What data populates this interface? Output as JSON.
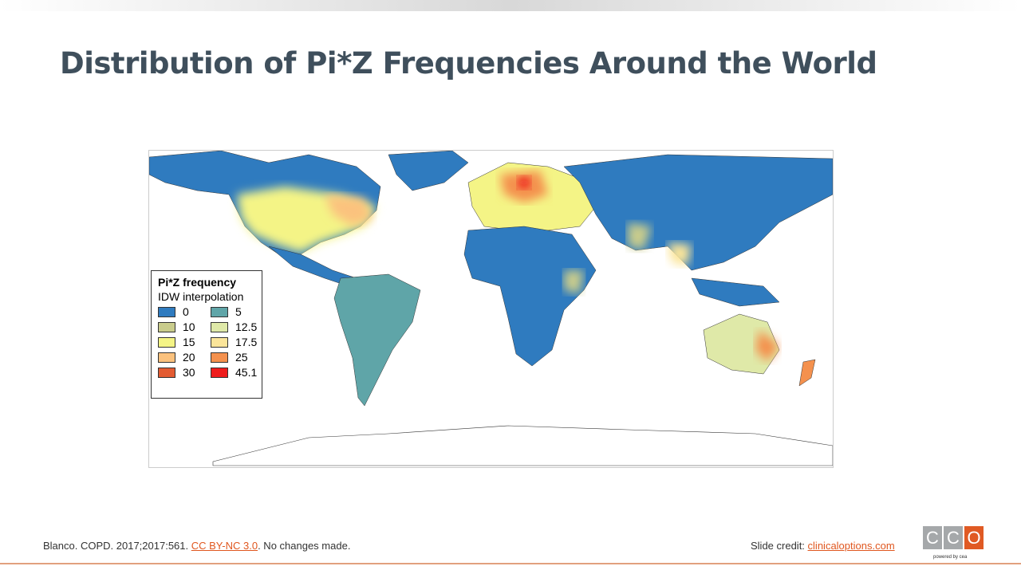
{
  "title": "Distribution of Pi*Z Frequencies Around the World",
  "legend": {
    "title": "Pi*Z frequency",
    "subtitle": "IDW interpolation",
    "items": [
      {
        "label": "0",
        "color": "#2f7bbf"
      },
      {
        "label": "5",
        "color": "#5fa5a8"
      },
      {
        "label": "10",
        "color": "#c9cc8c"
      },
      {
        "label": "12.5",
        "color": "#dfe9a8"
      },
      {
        "label": "15",
        "color": "#f4f486"
      },
      {
        "label": "17.5",
        "color": "#fbe59a"
      },
      {
        "label": "20",
        "color": "#fbc27e"
      },
      {
        "label": "25",
        "color": "#f4914e"
      },
      {
        "label": "30",
        "color": "#e35b32"
      },
      {
        "label": "45.1",
        "color": "#ee1c1c"
      }
    ]
  },
  "footer": {
    "citation": "Blanco. COPD. 2017;2017:561.",
    "license_link": "CC BY-NC 3.0",
    "note": ". No changes made.",
    "credit_label": "Slide credit:",
    "credit_link": "clinicaloptions.com"
  },
  "logo": {
    "letters": [
      "C",
      "C",
      "O"
    ],
    "powered": "powered by cea"
  }
}
